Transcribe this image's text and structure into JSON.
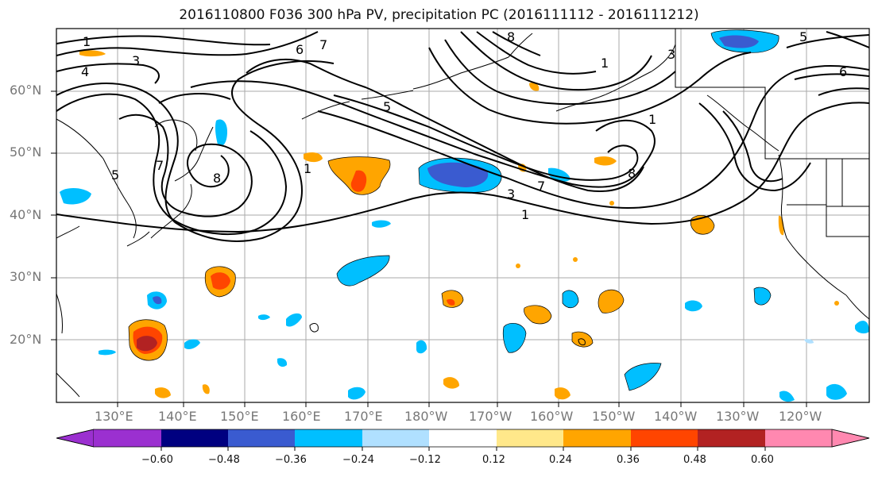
{
  "title": "2016110800 F036 300 hPa PV, precipitation PC (2016111112 - 2016111212)",
  "lat_labels": [
    "60°N",
    "50°N",
    "40°N",
    "30°N",
    "20°N"
  ],
  "lon_labels": [
    "130°E",
    "140°E",
    "150°E",
    "160°E",
    "170°E",
    "180°W",
    "170°W",
    "160°W",
    "150°W",
    "140°W",
    "130°W",
    "120°W"
  ],
  "contour_labels": [
    "1",
    "3",
    "4",
    "6",
    "7",
    "5",
    "8",
    "3",
    "1",
    "5",
    "6",
    "5",
    "8",
    "7",
    "1",
    "1",
    "8",
    "1",
    "3",
    "7"
  ],
  "colorbar": {
    "ticks": [
      "−0.60",
      "−0.48",
      "−0.36",
      "−0.24",
      "−0.12",
      "0.12",
      "0.24",
      "0.36",
      "0.48",
      "0.60"
    ],
    "colors": [
      "#9b30d0",
      "#000080",
      "#3a5bd0",
      "#00bfff",
      "#b0e0ff",
      "#ffffff",
      "#ffe88a",
      "#ffa500",
      "#ff4500",
      "#b22222",
      "#ff88b0"
    ]
  }
}
